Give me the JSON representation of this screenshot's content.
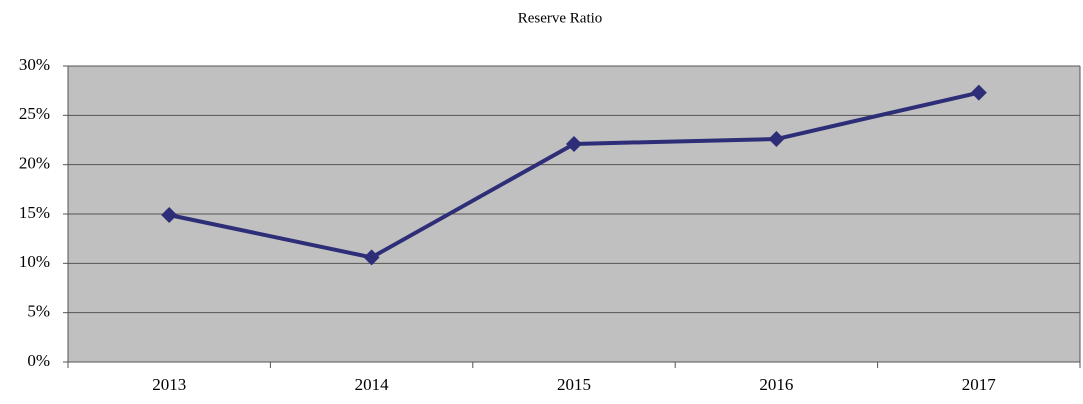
{
  "chart_data": {
    "type": "line",
    "title": "Reserve Ratio",
    "categories": [
      "2013",
      "2014",
      "2015",
      "2016",
      "2017"
    ],
    "series": [
      {
        "name": "Reserve Ratio",
        "color": "#2e2e78",
        "values": [
          14.9,
          10.6,
          22.1,
          22.6,
          27.3
        ]
      }
    ],
    "ylim": [
      0,
      30
    ],
    "yticks": [
      {
        "value": 0,
        "label": "0%"
      },
      {
        "value": 5,
        "label": "5%"
      },
      {
        "value": 10,
        "label": "10%"
      },
      {
        "value": 15,
        "label": "15%"
      },
      {
        "value": 20,
        "label": "20%"
      },
      {
        "value": 25,
        "label": "25%"
      },
      {
        "value": 30,
        "label": "30%"
      }
    ],
    "grid": true
  }
}
